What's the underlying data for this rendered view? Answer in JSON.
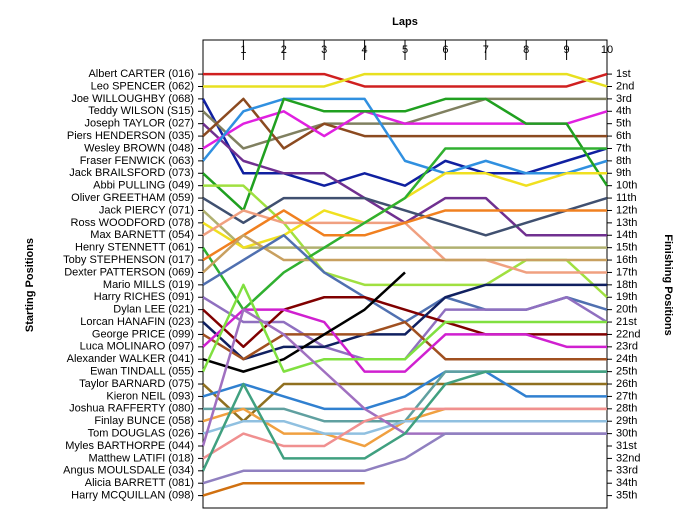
{
  "chart_data": {
    "type": "line",
    "title": "Laps",
    "y_label": "Starting Positions",
    "y2_label": "Finishing Positions",
    "x": [
      0,
      1,
      2,
      3,
      4,
      5,
      6,
      7,
      8,
      9,
      10
    ],
    "xlim": [
      0,
      10
    ],
    "xticks": [
      1,
      2,
      3,
      4,
      5,
      6,
      7,
      8,
      9,
      10
    ],
    "ylim": [
      -1.75,
      36
    ],
    "y2lim": [
      -1.75,
      36
    ],
    "y2ticks": [
      {
        "value": 1,
        "label": "1st"
      },
      {
        "value": 2,
        "label": "2nd"
      },
      {
        "value": 3,
        "label": "3rd"
      },
      {
        "value": 4,
        "label": "4th"
      },
      {
        "value": 5,
        "label": "5th"
      },
      {
        "value": 6,
        "label": "6th"
      },
      {
        "value": 7,
        "label": "7th"
      },
      {
        "value": 8,
        "label": "8th"
      },
      {
        "value": 9,
        "label": "9th"
      },
      {
        "value": 10,
        "label": "10th"
      },
      {
        "value": 11,
        "label": "11th"
      },
      {
        "value": 12,
        "label": "12th"
      },
      {
        "value": 13,
        "label": "13th"
      },
      {
        "value": 14,
        "label": "14th"
      },
      {
        "value": 15,
        "label": "15th"
      },
      {
        "value": 16,
        "label": "16th"
      },
      {
        "value": 17,
        "label": "17th"
      },
      {
        "value": 18,
        "label": "18th"
      },
      {
        "value": 19,
        "label": "19th"
      },
      {
        "value": 20,
        "label": "20th"
      },
      {
        "value": 21,
        "label": "21st"
      },
      {
        "value": 22,
        "label": "22nd"
      },
      {
        "value": 23,
        "label": "23rd"
      },
      {
        "value": 24,
        "label": "24th"
      },
      {
        "value": 25,
        "label": "25th"
      },
      {
        "value": 26,
        "label": "26th"
      },
      {
        "value": 27,
        "label": "27th"
      },
      {
        "value": 28,
        "label": "28th"
      },
      {
        "value": 29,
        "label": "29th"
      },
      {
        "value": 30,
        "label": "30th"
      },
      {
        "value": 31,
        "label": "31st"
      },
      {
        "value": 32,
        "label": "32nd"
      },
      {
        "value": 33,
        "label": "33rd"
      },
      {
        "value": 34,
        "label": "34th"
      },
      {
        "value": 35,
        "label": "35th"
      }
    ],
    "series": [
      {
        "name": "Albert CARTER (016)",
        "color": "#d02020",
        "values": [
          1,
          1,
          1,
          1,
          2,
          2,
          2,
          2,
          2,
          2,
          1
        ]
      },
      {
        "name": "Leo SPENCER (062)",
        "color": "#e8e020",
        "values": [
          2,
          2,
          2,
          2,
          1,
          1,
          1,
          1,
          1,
          1,
          2
        ]
      },
      {
        "name": "Joe WILLOUGHBY (068)",
        "color": "#1020a0",
        "values": [
          3,
          9,
          9,
          10,
          9,
          10,
          8,
          9,
          9,
          8,
          7
        ]
      },
      {
        "name": "Teddy WILSON (S15)",
        "color": "#808060",
        "values": [
          4,
          7,
          6,
          5,
          5,
          5,
          4,
          3,
          3,
          3,
          3
        ]
      },
      {
        "name": "Joseph TAYLOR (027)",
        "color": "#703090",
        "values": [
          5,
          8,
          9,
          9,
          11,
          13,
          11,
          11,
          14,
          14,
          14
        ]
      },
      {
        "name": "Piers HENDERSON (035)",
        "color": "#8b4a20",
        "values": [
          6,
          3,
          7,
          5,
          6,
          6,
          6,
          6,
          6,
          6,
          6
        ]
      },
      {
        "name": "Wesley BROWN (048)",
        "color": "#e020e0",
        "values": [
          7,
          5,
          4,
          6,
          4,
          5,
          5,
          5,
          5,
          5,
          4
        ]
      },
      {
        "name": "Fraser FENWICK (063)",
        "color": "#3090e0",
        "values": [
          8,
          4,
          3,
          3,
          3,
          8,
          9,
          8,
          9,
          9,
          8
        ]
      },
      {
        "name": "Jack BRAILSFORD (073)",
        "color": "#20a020",
        "values": [
          9,
          12,
          3,
          4,
          4,
          4,
          3,
          3,
          5,
          5,
          10
        ]
      },
      {
        "name": "Abbi PULLING (049)",
        "color": "#a0e040",
        "values": [
          10,
          10,
          13,
          17,
          18,
          18,
          18,
          18,
          16,
          16,
          19
        ]
      },
      {
        "name": "Oliver GREETHAM (059)",
        "color": "#405070",
        "values": [
          11,
          13,
          11,
          11,
          11,
          12,
          13,
          14,
          13,
          12,
          11
        ]
      },
      {
        "name": "Jack PIERCY (071)",
        "color": "#b0b070",
        "values": [
          12,
          15,
          15,
          15,
          15,
          15,
          15,
          15,
          15,
          15,
          15
        ]
      },
      {
        "name": "Ross WOODFORD (078)",
        "color": "#f0e020",
        "values": [
          13,
          15,
          14,
          12,
          13,
          11,
          9,
          9,
          10,
          9,
          9
        ]
      },
      {
        "name": "Max BARNETT (054)",
        "color": "#f0a080",
        "values": [
          14,
          12,
          13,
          13,
          13,
          13,
          16,
          16,
          17,
          17,
          17
        ]
      },
      {
        "name": "Henry STENNETT (061)",
        "color": "#30b030",
        "values": [
          15,
          20,
          17,
          15,
          13,
          11,
          7,
          7,
          7,
          7,
          7
        ]
      },
      {
        "name": "Toby STEPHENSON (017)",
        "color": "#f08020",
        "values": [
          16,
          14,
          12,
          14,
          14,
          13,
          12,
          12,
          12,
          12,
          12
        ]
      },
      {
        "name": "Dexter PATTERSON (069)",
        "color": "#c8a060",
        "values": [
          17,
          14,
          16,
          16,
          16,
          16,
          16,
          16,
          16,
          16,
          16
        ]
      },
      {
        "name": "Mario MILLS (019)",
        "color": "#5070b0",
        "values": [
          18,
          16,
          14,
          17,
          19,
          21,
          19,
          20,
          20,
          19,
          20
        ]
      },
      {
        "name": "Harry RICHES (091)",
        "color": "#9070c0",
        "values": [
          19,
          21,
          21,
          23,
          24,
          24,
          20,
          20,
          20,
          19,
          21
        ]
      },
      {
        "name": "Dylan LEE (021)",
        "color": "#800000",
        "values": [
          20,
          23,
          20,
          19,
          19,
          20,
          21,
          22,
          22,
          22,
          22
        ]
      },
      {
        "name": "Lorcan HANAFIN (023)",
        "color": "#102060",
        "values": [
          21,
          24,
          23,
          23,
          22,
          22,
          19,
          18,
          18,
          18,
          18
        ]
      },
      {
        "name": "George PRICE (099)",
        "color": "#a05020",
        "values": [
          22,
          24,
          22,
          22,
          22,
          21,
          24,
          24,
          24,
          24,
          24
        ]
      },
      {
        "name": "Luca MOLINARO (097)",
        "color": "#d020d0",
        "values": [
          23,
          20,
          20,
          21,
          25,
          25,
          22,
          22,
          22,
          23,
          23
        ]
      },
      {
        "name": "Alexander WALKER (041)",
        "color": "#000000",
        "values": [
          24,
          25,
          24,
          22,
          20,
          17,
          null,
          null,
          null,
          null,
          null
        ]
      },
      {
        "name": "Ewan TINDALL (055)",
        "color": "#80e040",
        "values": [
          25,
          18,
          25,
          24,
          24,
          24,
          21,
          21,
          21,
          21,
          21
        ]
      },
      {
        "name": "Taylor BARNARD (075)",
        "color": "#907020",
        "values": [
          26,
          29,
          26,
          26,
          26,
          26,
          26,
          26,
          26,
          26,
          26
        ]
      },
      {
        "name": "Kieron NEIL (093)",
        "color": "#3080d0",
        "values": [
          27,
          26,
          27,
          28,
          28,
          27,
          25,
          25,
          27,
          27,
          27
        ]
      },
      {
        "name": "Joshua RAFFERTY (080)",
        "color": "#60a0a0",
        "values": [
          28,
          28,
          28,
          29,
          29,
          29,
          25,
          25,
          25,
          25,
          25
        ]
      },
      {
        "name": "Finlay BUNCE (058)",
        "color": "#f0a040",
        "values": [
          29,
          28,
          30,
          30,
          31,
          29,
          28,
          28,
          28,
          28,
          28
        ]
      },
      {
        "name": "Tom DOUGLAS (026)",
        "color": "#90c0e0",
        "values": [
          30,
          29,
          29,
          30,
          30,
          29,
          29,
          29,
          29,
          29,
          29
        ]
      },
      {
        "name": "Myles BARTHORPE (044)",
        "color": "#a070c0",
        "values": [
          31,
          20,
          22,
          25,
          28,
          30,
          30,
          30,
          30,
          30,
          30
        ]
      },
      {
        "name": "Matthew LATIFI (018)",
        "color": "#f09090",
        "values": [
          32,
          30,
          31,
          31,
          29,
          28,
          28,
          28,
          28,
          28,
          28
        ]
      },
      {
        "name": "Angus MOULSDALE (034)",
        "color": "#40a080",
        "values": [
          33,
          26,
          32,
          32,
          32,
          30,
          26,
          25,
          25,
          25,
          25
        ]
      },
      {
        "name": "Alicia BARRETT (081)",
        "color": "#9080c0",
        "values": [
          34,
          33,
          33,
          33,
          33,
          32,
          30,
          30,
          30,
          30,
          30
        ]
      },
      {
        "name": "Harry MCQUILLAN (098)",
        "color": "#d07010",
        "values": [
          35,
          34,
          34,
          34,
          34,
          null,
          null,
          null,
          null,
          null,
          null
        ]
      }
    ]
  }
}
